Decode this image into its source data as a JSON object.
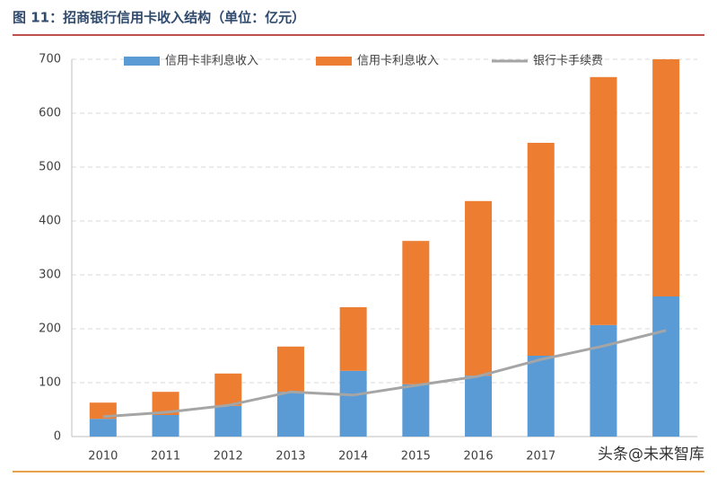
{
  "chart_data": {
    "type": "bar",
    "stacked": true,
    "title": "图 11：招商银行信用卡收入结构（单位：亿元）",
    "watermark": "头条@未来智库",
    "categories": [
      "2010",
      "2011",
      "2012",
      "2013",
      "2014",
      "2015",
      "2016",
      "2017",
      null,
      null
    ],
    "series": [
      {
        "name": "信用卡非利息收入",
        "type": "bar",
        "color": "#5b9bd5",
        "values": [
          33,
          40,
          57,
          83,
          122,
          97,
          113,
          150,
          207,
          260
        ]
      },
      {
        "name": "信用卡利息收入",
        "type": "bar",
        "color": "#ed7d31",
        "values": [
          30,
          43,
          60,
          84,
          118,
          266,
          324,
          395,
          460,
          440
        ]
      },
      {
        "name": "银行卡手续费",
        "type": "line",
        "color": "#a5a5a5",
        "values": [
          37,
          45,
          58,
          83,
          77,
          95,
          112,
          143,
          168,
          197
        ]
      }
    ],
    "ylim": [
      0,
      700
    ],
    "yticks": [
      0,
      100,
      200,
      300,
      400,
      500,
      600,
      700
    ],
    "grid": true,
    "legend": "top"
  }
}
